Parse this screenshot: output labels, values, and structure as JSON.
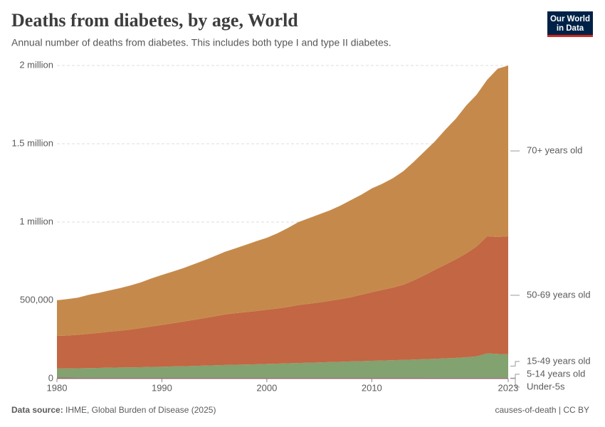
{
  "chart_data": {
    "type": "stacked-area",
    "title": "Deaths from diabetes, by age, World",
    "subtitle": "Annual number of deaths from diabetes. This includes both type I and type II diabetes.",
    "logo": [
      "Our World",
      "in Data"
    ],
    "source_label": "Data source:",
    "source": "IHME, Global Burden of Disease (2025)",
    "footer_right": "causes-of-death | CC BY",
    "x": [
      1980,
      1981,
      1982,
      1983,
      1984,
      1985,
      1986,
      1987,
      1988,
      1989,
      1990,
      1991,
      1992,
      1993,
      1994,
      1995,
      1996,
      1997,
      1998,
      1999,
      2000,
      2001,
      2002,
      2003,
      2004,
      2005,
      2006,
      2007,
      2008,
      2009,
      2010,
      2011,
      2012,
      2013,
      2014,
      2015,
      2016,
      2017,
      2018,
      2019,
      2020,
      2021,
      2022,
      2023
    ],
    "xlim": [
      1980,
      2023
    ],
    "xticks": [
      1980,
      1990,
      2000,
      2010,
      2023
    ],
    "ylim": [
      0,
      2000000
    ],
    "yticks": [
      0,
      {
        "value": 500000,
        "label": "500,000"
      },
      {
        "value": 1000000,
        "label": "1 million"
      },
      {
        "value": 1500000,
        "label": "1.5 million"
      },
      {
        "value": 2000000,
        "label": "2 million"
      }
    ],
    "grid": true,
    "series": [
      {
        "name": "Under-5s",
        "color": "#4c6a9c",
        "values": [
          2500,
          2480,
          2460,
          2440,
          2420,
          2400,
          2380,
          2360,
          2340,
          2320,
          2300,
          2280,
          2260,
          2240,
          2220,
          2200,
          2180,
          2160,
          2140,
          2120,
          2100,
          2080,
          2060,
          2040,
          2020,
          2000,
          1980,
          1960,
          1940,
          1920,
          1900,
          1880,
          1860,
          1840,
          1820,
          1800,
          1780,
          1760,
          1740,
          1720,
          1700,
          1690,
          1680,
          1670
        ]
      },
      {
        "name": "5-14 years old",
        "color": "#9a3545",
        "values": [
          3500,
          3500,
          3500,
          3500,
          3500,
          3500,
          3500,
          3500,
          3500,
          3500,
          3500,
          3500,
          3500,
          3500,
          3500,
          3500,
          3500,
          3500,
          3500,
          3500,
          3600,
          3600,
          3600,
          3600,
          3600,
          3600,
          3600,
          3600,
          3600,
          3600,
          3600,
          3600,
          3600,
          3600,
          3600,
          3600,
          3600,
          3600,
          3600,
          3600,
          3600,
          3600,
          3600,
          3600
        ]
      },
      {
        "name": "15-49 years old",
        "color": "#7b9d68",
        "values": [
          58000,
          59000,
          60000,
          61000,
          62000,
          64000,
          65000,
          66000,
          67000,
          69000,
          70000,
          72000,
          73000,
          75000,
          77000,
          79000,
          81000,
          83000,
          84000,
          86000,
          88000,
          90000,
          92000,
          94000,
          96000,
          98000,
          100000,
          102000,
          104000,
          106000,
          108000,
          110000,
          112000,
          114000,
          116000,
          119000,
          121000,
          124000,
          127000,
          131000,
          137000,
          156000,
          152000,
          150000
        ]
      },
      {
        "name": "50-69 years old",
        "color": "#c05e39",
        "values": [
          209000,
          210000,
          214000,
          219000,
          224000,
          230000,
          235000,
          242000,
          250000,
          258000,
          267000,
          275000,
          285000,
          294000,
          303000,
          313000,
          323000,
          329000,
          335000,
          340000,
          346000,
          352000,
          360000,
          370000,
          376000,
          383000,
          391000,
          400000,
          410000,
          424000,
          438000,
          451000,
          464000,
          480000,
          506000,
          535000,
          568000,
          598000,
          629000,
          663000,
          702000,
          748000,
          747000,
          754000
        ]
      },
      {
        "name": "70+ years old",
        "color": "#c28441",
        "values": [
          227000,
          233000,
          237000,
          249000,
          256000,
          263000,
          272000,
          281000,
          292000,
          307000,
          319000,
          330000,
          341000,
          355000,
          369000,
          384000,
          400000,
          414000,
          430000,
          446000,
          460000,
          480000,
          504000,
          530000,
          547000,
          563000,
          578000,
          597000,
          620000,
          639000,
          663000,
          678000,
          698000,
          725000,
          757000,
          790000,
          820000,
          862000,
          898000,
          945000,
          970000,
          1000000,
          1075000,
          1090000
        ]
      }
    ]
  }
}
